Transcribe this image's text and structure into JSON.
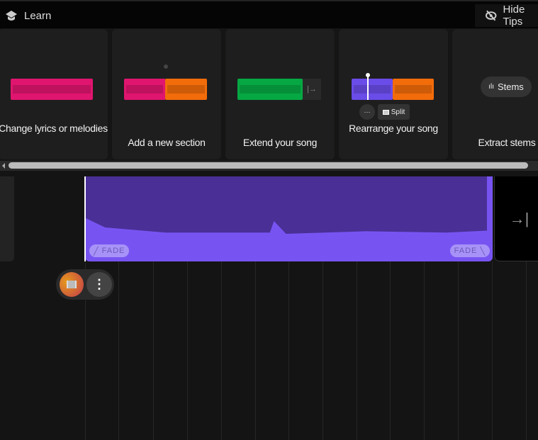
{
  "header": {
    "learn_label": "Learn",
    "hide_tips_label": "Hide Tips"
  },
  "cards": [
    {
      "caption": "Change lyrics or melodies"
    },
    {
      "caption": "Add a new section"
    },
    {
      "caption": "Extend your song"
    },
    {
      "caption": "Rearrange your song",
      "more_label": "···",
      "split_label": "Split"
    },
    {
      "caption": "Extract stems",
      "stems_label": "Stems"
    }
  ],
  "track": {
    "fade_in_label": "FADE",
    "fade_out_label": "FADE",
    "extend_icon": "→|"
  },
  "colors": {
    "pink": "#e0156f",
    "orange": "#f26c0a",
    "green": "#06a843",
    "purple": "#7754f2"
  }
}
